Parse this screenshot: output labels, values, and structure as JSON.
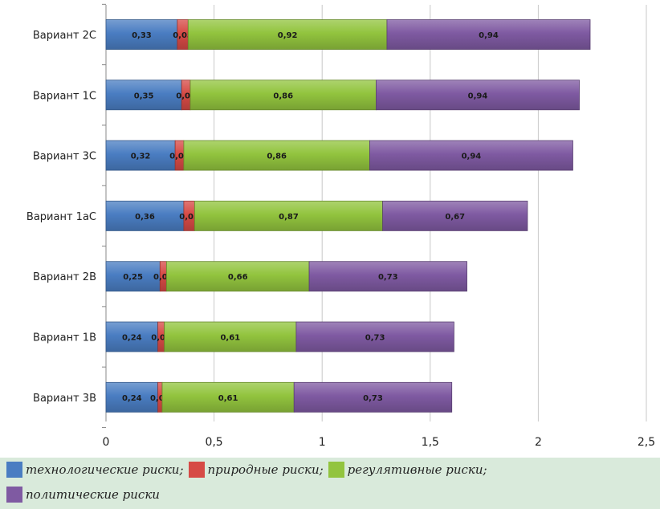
{
  "chart_data": {
    "type": "bar",
    "orientation": "horizontal",
    "stacked": true,
    "categories": [
      "Вариант 2С",
      "Вариант 1С",
      "Вариант 3С",
      "Вариант 1аС",
      "Вариант 2В",
      "Вариант 1В",
      "Вариант 3В"
    ],
    "series": [
      {
        "name": "технологические риски;",
        "color": "#4a7dc2",
        "values": [
          0.33,
          0.35,
          0.32,
          0.36,
          0.25,
          0.24,
          0.24
        ]
      },
      {
        "name": "природные риски;",
        "color": "#d64a45",
        "values": [
          0.05,
          0.04,
          0.04,
          0.05,
          0.03,
          0.03,
          0.02
        ]
      },
      {
        "name": "регулятивные риски;",
        "color": "#92c43e",
        "values": [
          0.92,
          0.86,
          0.86,
          0.87,
          0.66,
          0.61,
          0.61
        ]
      },
      {
        "name": "политические риски",
        "color": "#7f5aa2",
        "values": [
          0.94,
          0.94,
          0.94,
          0.67,
          0.73,
          0.73,
          0.73
        ]
      }
    ],
    "data_labels": [
      [
        "0,33",
        "0,35",
        "0,32",
        "0,36",
        "0,25",
        "0,24",
        "0,24"
      ],
      [
        "0,05",
        "0,04",
        "0,04",
        "0,05",
        "0,03",
        "0,03",
        "0,02"
      ],
      [
        "0,92",
        "0,86",
        "0,86",
        "0,87",
        "0,66",
        "0,61",
        "0,61"
      ],
      [
        "0,94",
        "0,94",
        "0,94",
        "0,67",
        "0,73",
        "0,73",
        "0,73"
      ]
    ],
    "xlim": [
      0,
      2.5
    ],
    "ticks": [
      0,
      0.5,
      1,
      1.5,
      2,
      2.5
    ],
    "tick_labels": [
      "0",
      "0,5",
      "1",
      "1,5",
      "2",
      "2,5"
    ],
    "grid": true,
    "legend_position": "bottom",
    "title": "",
    "xlabel": "",
    "ylabel": ""
  },
  "colors": {
    "background": "#d9eadb",
    "plot_background": "#ffffff",
    "grid": "#c8c8c8"
  }
}
